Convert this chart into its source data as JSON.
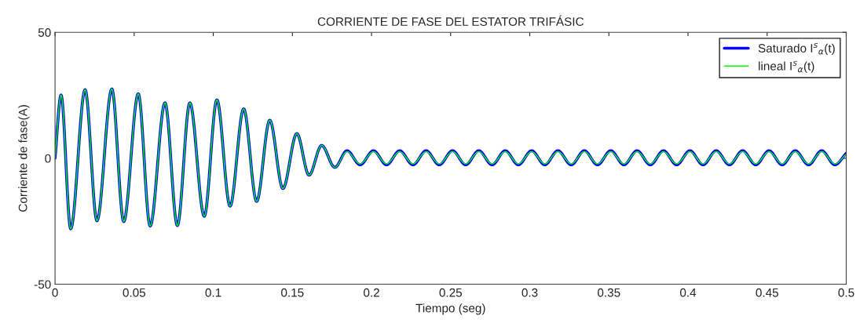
{
  "chart_data": {
    "type": "line",
    "title": "CORRIENTE DE FASE DEL ESTATOR TRIFÁSIC",
    "xlabel": "Tiempo (seg)",
    "ylabel": "Corriente de fase(A)",
    "x": [
      0,
      0.0038,
      0.0099,
      0.019,
      0.0265,
      0.0359,
      0.0434,
      0.0526,
      0.0601,
      0.0695,
      0.0773,
      0.0852,
      0.0943,
      0.1023,
      0.1106,
      0.1192,
      0.1274,
      0.1357,
      0.144,
      0.1528,
      0.1605,
      0.1685,
      0.1768,
      0.1845,
      0.1928,
      0.2012,
      0.2095,
      0.2178,
      0.2262,
      0.2345,
      0.2428,
      0.2512,
      0.2595,
      0.2678,
      0.2762,
      0.2845,
      0.2928,
      0.3012,
      0.3095,
      0.3178,
      0.3262,
      0.3345,
      0.3428,
      0.3512,
      0.3595,
      0.3678,
      0.3762,
      0.3845,
      0.3928,
      0.4012,
      0.4095,
      0.4178,
      0.4262,
      0.4345,
      0.4428,
      0.4512,
      0.4595,
      0.4678,
      0.4762,
      0.4845,
      0.4928,
      0.5
    ],
    "series": [
      {
        "name": "Saturado I$^{s}$$_{α}$(t)",
        "color": "#0000ff",
        "values": [
          0,
          25.1,
          -28,
          27.2,
          -24.8,
          27.5,
          -25.1,
          25.6,
          -26.9,
          22,
          -26.7,
          22,
          -23,
          23.2,
          -19,
          19.6,
          -17.1,
          15.1,
          -12,
          9.8,
          -6.7,
          5.1,
          -3.6,
          3,
          -2.6,
          3,
          -2.6,
          3,
          -2.6,
          3,
          -2.6,
          3,
          -2.6,
          3,
          -2.6,
          3,
          -2.6,
          3,
          -2.6,
          3,
          -2.6,
          3,
          -2.6,
          3,
          -2.6,
          3,
          -2.6,
          3,
          -2.6,
          3,
          -2.6,
          3,
          -2.6,
          3,
          -2.6,
          3,
          -2.6,
          3,
          -2.6,
          3,
          -2.6,
          2
        ]
      },
      {
        "name": "lineal I$^{s}$$_{α}$(t)",
        "color": "#00ff00",
        "values": [
          0,
          25.1,
          -28,
          27.2,
          -24.8,
          27.5,
          -25.1,
          25.6,
          -26.9,
          22,
          -26.7,
          22,
          -23,
          23.2,
          -19,
          19.6,
          -17.1,
          15.1,
          -12,
          9.8,
          -6.7,
          5.1,
          -3.6,
          2.6,
          -2.2,
          2.6,
          -2.2,
          2.6,
          -2.2,
          2.6,
          -2.2,
          2.6,
          -2.2,
          2.6,
          -2.2,
          2.6,
          -2.2,
          2.6,
          -2.2,
          2.6,
          -2.2,
          2.6,
          -2.2,
          2.6,
          -2.2,
          2.6,
          -2.2,
          2.6,
          -2.2,
          2.6,
          -2.2,
          2.6,
          -2.2,
          2.6,
          -2.2,
          2.6,
          -2.2,
          2.6,
          -2.2,
          2.6,
          -2.2,
          1.6
        ]
      }
    ],
    "xlim": [
      0,
      0.5
    ],
    "xticks": [
      0,
      0.05,
      0.1,
      0.15,
      0.2,
      0.25,
      0.3,
      0.35,
      0.4,
      0.45,
      0.5
    ],
    "ylim": [
      -50,
      50
    ],
    "yticks": [
      -50,
      0,
      50
    ],
    "legend": "top right",
    "grid": false
  }
}
